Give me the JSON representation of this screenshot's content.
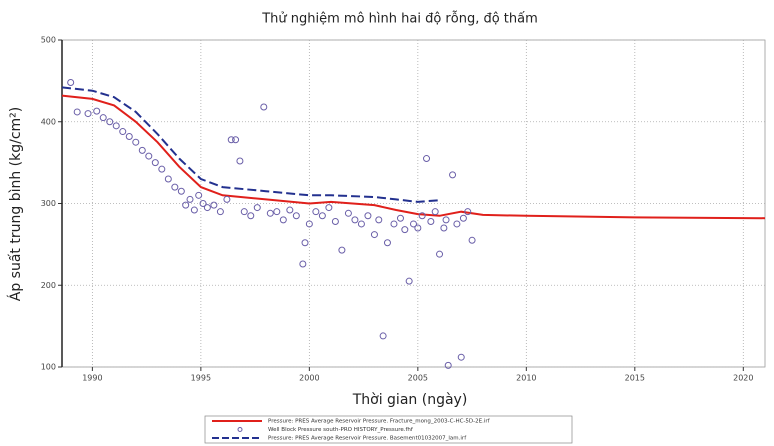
{
  "chart_data": {
    "type": "line",
    "title": "Thử nghiệm mô hình hai độ rỗng, độ thấm",
    "xlabel": "Thời gian (ngày)",
    "ylabel": "Áp suất trung bình (kg/cm²)",
    "xlim": [
      1988.6,
      2021
    ],
    "xticks": [
      1990,
      1995,
      2000,
      2005,
      2010,
      2015,
      2020
    ],
    "ylim": [
      100,
      500
    ],
    "yticks": [
      100,
      200,
      300,
      400,
      500
    ],
    "grid": true,
    "series": [
      {
        "name": "Pressure: PRES  Average Reservoir Pressure. Fracture_mong_2003-C-HC-5D-2E.irf",
        "color": "#e0201b",
        "kind": "line",
        "x": [
          1988.6,
          1990,
          1991,
          1992,
          1993,
          1994,
          1995,
          1996,
          1998,
          2000,
          2001,
          2003,
          2004,
          2005,
          2006,
          2007,
          2008,
          2010,
          2015,
          2021
        ],
        "values": [
          432,
          428,
          420,
          400,
          375,
          345,
          320,
          310,
          305,
          300,
          302,
          298,
          292,
          287,
          285,
          290,
          286,
          285,
          283,
          282
        ]
      },
      {
        "name": "Well Block Pressure south-PRO HISTORY_Pressure.fhf",
        "color": "#6a5fa8",
        "kind": "scatter",
        "x": [
          1989.0,
          1989.3,
          1989.8,
          1990.2,
          1990.5,
          1990.8,
          1991.1,
          1991.4,
          1991.7,
          1992.0,
          1992.3,
          1992.6,
          1992.9,
          1993.2,
          1993.5,
          1993.8,
          1994.1,
          1994.3,
          1994.5,
          1994.7,
          1994.9,
          1995.1,
          1995.3,
          1995.6,
          1995.9,
          1996.2,
          1996.4,
          1996.6,
          1996.8,
          1997.0,
          1997.3,
          1997.6,
          1997.9,
          1998.2,
          1998.5,
          1998.8,
          1999.1,
          1999.4,
          1999.7,
          1999.8,
          2000.0,
          2000.3,
          2000.6,
          2000.9,
          2001.2,
          2001.5,
          2001.8,
          2002.1,
          2002.4,
          2002.7,
          2003.0,
          2003.2,
          2003.4,
          2003.6,
          2003.9,
          2004.2,
          2004.4,
          2004.6,
          2004.8,
          2005.0,
          2005.2,
          2005.4,
          2005.6,
          2005.8,
          2006.0,
          2006.2,
          2006.3,
          2006.4,
          2006.6,
          2006.8,
          2007.0,
          2007.1,
          2007.3,
          2007.5
        ],
        "values": [
          448,
          412,
          410,
          413,
          405,
          400,
          395,
          388,
          382,
          375,
          365,
          358,
          350,
          342,
          330,
          320,
          315,
          298,
          305,
          292,
          310,
          300,
          295,
          298,
          290,
          305,
          378,
          378,
          352,
          290,
          285,
          295,
          418,
          288,
          290,
          280,
          292,
          285,
          226,
          252,
          275,
          290,
          285,
          295,
          278,
          243,
          288,
          280,
          275,
          285,
          262,
          280,
          138,
          252,
          275,
          282,
          268,
          205,
          275,
          270,
          285,
          355,
          278,
          290,
          238,
          270,
          280,
          102,
          335,
          275,
          112,
          282,
          290,
          255
        ]
      },
      {
        "name": "Pressure: PRES  Average Reservoir Pressure. Basement01032007_lam.irf",
        "color": "#23318f",
        "kind": "dashed",
        "x": [
          1988.6,
          1990,
          1991,
          1992,
          1993,
          1994,
          1995,
          1996,
          1998,
          2000,
          2001,
          2003,
          2004,
          2005,
          2006
        ],
        "values": [
          442,
          438,
          430,
          412,
          385,
          355,
          330,
          320,
          315,
          310,
          310,
          308,
          305,
          302,
          304
        ]
      }
    ]
  }
}
